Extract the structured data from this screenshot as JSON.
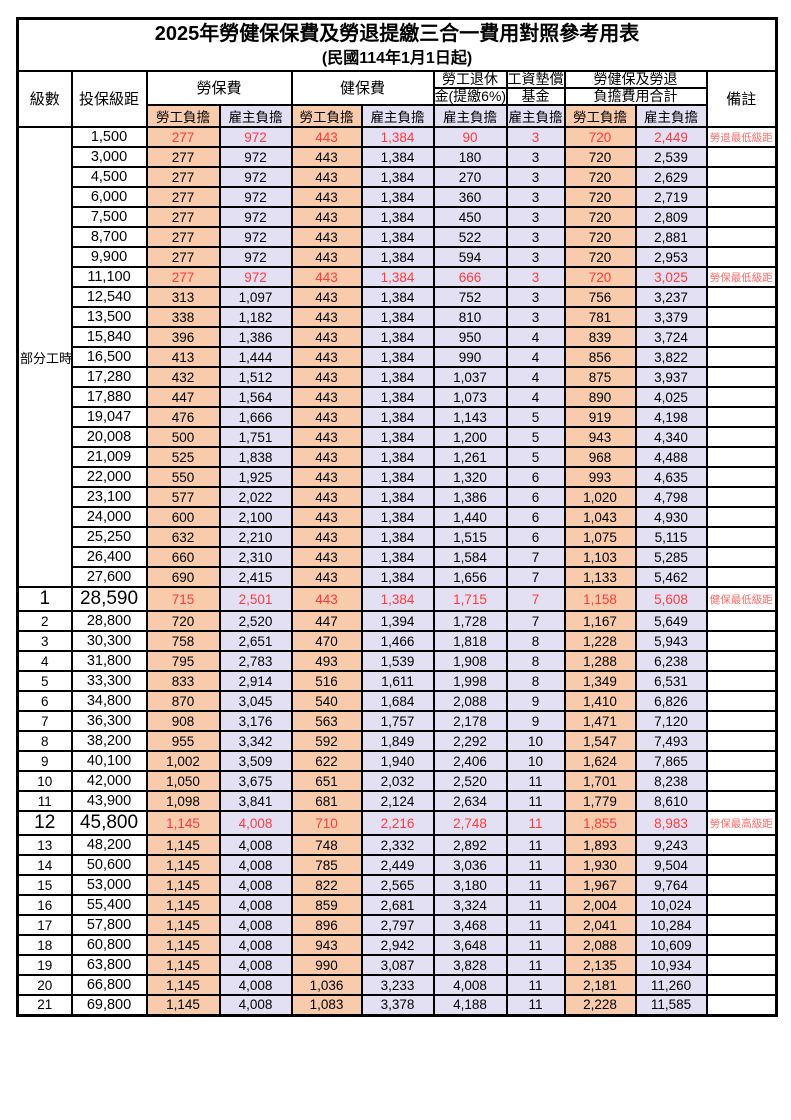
{
  "colors": {
    "employee_col_bg": "#F8CBAD",
    "employer_col_bg": "#E3E0F3",
    "highlight_value_red": "#FF3B3B",
    "note_red": "#FF6B6B",
    "border_black": "#000000",
    "page_bg": "#FFFFFF"
  },
  "table": {
    "title": "2025年勞健保保費及勞退提繳三合一費用對照參考用表",
    "subtitle": "(民國114年1月1日起)",
    "header": {
      "level": "級數",
      "bracket": "投保級距",
      "labor_fee": "勞保費",
      "health_fee": "健保費",
      "pension_line1": "勞工退休",
      "pension_line2": "金(提繳6%)",
      "wage_fund_line1": "工資墊償",
      "wage_fund_line2": "基金",
      "total_line1": "勞健保及勞退",
      "total_line2": "負擔費用合計",
      "note": "備註",
      "employee_share": "勞工負擔",
      "employer_share": "雇主負擔"
    },
    "part_time_label": "部分工時",
    "part_time_rowspan": 23,
    "value_col_classes": [
      "emp",
      "er",
      "emp",
      "er",
      "er",
      "er",
      "emp",
      "er"
    ],
    "rows": [
      {
        "level": "",
        "bracket": "1,500",
        "values": [
          "277",
          "972",
          "443",
          "1,384",
          "90",
          "3",
          "720",
          "2,449"
        ],
        "red": true,
        "big": false,
        "note": "勞退最低級距"
      },
      {
        "level": "",
        "bracket": "3,000",
        "values": [
          "277",
          "972",
          "443",
          "1,384",
          "180",
          "3",
          "720",
          "2,539"
        ],
        "red": false,
        "big": false,
        "note": ""
      },
      {
        "level": "",
        "bracket": "4,500",
        "values": [
          "277",
          "972",
          "443",
          "1,384",
          "270",
          "3",
          "720",
          "2,629"
        ],
        "red": false,
        "big": false,
        "note": ""
      },
      {
        "level": "",
        "bracket": "6,000",
        "values": [
          "277",
          "972",
          "443",
          "1,384",
          "360",
          "3",
          "720",
          "2,719"
        ],
        "red": false,
        "big": false,
        "note": ""
      },
      {
        "level": "",
        "bracket": "7,500",
        "values": [
          "277",
          "972",
          "443",
          "1,384",
          "450",
          "3",
          "720",
          "2,809"
        ],
        "red": false,
        "big": false,
        "note": ""
      },
      {
        "level": "",
        "bracket": "8,700",
        "values": [
          "277",
          "972",
          "443",
          "1,384",
          "522",
          "3",
          "720",
          "2,881"
        ],
        "red": false,
        "big": false,
        "note": ""
      },
      {
        "level": "",
        "bracket": "9,900",
        "values": [
          "277",
          "972",
          "443",
          "1,384",
          "594",
          "3",
          "720",
          "2,953"
        ],
        "red": false,
        "big": false,
        "note": ""
      },
      {
        "level": "",
        "bracket": "11,100",
        "values": [
          "277",
          "972",
          "443",
          "1,384",
          "666",
          "3",
          "720",
          "3,025"
        ],
        "red": true,
        "big": false,
        "note": "勞保最低級距"
      },
      {
        "level": "",
        "bracket": "12,540",
        "values": [
          "313",
          "1,097",
          "443",
          "1,384",
          "752",
          "3",
          "756",
          "3,237"
        ],
        "red": false,
        "big": false,
        "note": ""
      },
      {
        "level": "",
        "bracket": "13,500",
        "values": [
          "338",
          "1,182",
          "443",
          "1,384",
          "810",
          "3",
          "781",
          "3,379"
        ],
        "red": false,
        "big": false,
        "note": ""
      },
      {
        "level": "",
        "bracket": "15,840",
        "values": [
          "396",
          "1,386",
          "443",
          "1,384",
          "950",
          "4",
          "839",
          "3,724"
        ],
        "red": false,
        "big": false,
        "note": ""
      },
      {
        "level": "",
        "bracket": "16,500",
        "values": [
          "413",
          "1,444",
          "443",
          "1,384",
          "990",
          "4",
          "856",
          "3,822"
        ],
        "red": false,
        "big": false,
        "note": ""
      },
      {
        "level": "",
        "bracket": "17,280",
        "values": [
          "432",
          "1,512",
          "443",
          "1,384",
          "1,037",
          "4",
          "875",
          "3,937"
        ],
        "red": false,
        "big": false,
        "note": ""
      },
      {
        "level": "",
        "bracket": "17,880",
        "values": [
          "447",
          "1,564",
          "443",
          "1,384",
          "1,073",
          "4",
          "890",
          "4,025"
        ],
        "red": false,
        "big": false,
        "note": ""
      },
      {
        "level": "",
        "bracket": "19,047",
        "values": [
          "476",
          "1,666",
          "443",
          "1,384",
          "1,143",
          "5",
          "919",
          "4,198"
        ],
        "red": false,
        "big": false,
        "note": ""
      },
      {
        "level": "",
        "bracket": "20,008",
        "values": [
          "500",
          "1,751",
          "443",
          "1,384",
          "1,200",
          "5",
          "943",
          "4,340"
        ],
        "red": false,
        "big": false,
        "note": ""
      },
      {
        "level": "",
        "bracket": "21,009",
        "values": [
          "525",
          "1,838",
          "443",
          "1,384",
          "1,261",
          "5",
          "968",
          "4,488"
        ],
        "red": false,
        "big": false,
        "note": ""
      },
      {
        "level": "",
        "bracket": "22,000",
        "values": [
          "550",
          "1,925",
          "443",
          "1,384",
          "1,320",
          "6",
          "993",
          "4,635"
        ],
        "red": false,
        "big": false,
        "note": ""
      },
      {
        "level": "",
        "bracket": "23,100",
        "values": [
          "577",
          "2,022",
          "443",
          "1,384",
          "1,386",
          "6",
          "1,020",
          "4,798"
        ],
        "red": false,
        "big": false,
        "note": ""
      },
      {
        "level": "",
        "bracket": "24,000",
        "values": [
          "600",
          "2,100",
          "443",
          "1,384",
          "1,440",
          "6",
          "1,043",
          "4,930"
        ],
        "red": false,
        "big": false,
        "note": ""
      },
      {
        "level": "",
        "bracket": "25,250",
        "values": [
          "632",
          "2,210",
          "443",
          "1,384",
          "1,515",
          "6",
          "1,075",
          "5,115"
        ],
        "red": false,
        "big": false,
        "note": ""
      },
      {
        "level": "",
        "bracket": "26,400",
        "values": [
          "660",
          "2,310",
          "443",
          "1,384",
          "1,584",
          "7",
          "1,103",
          "5,285"
        ],
        "red": false,
        "big": false,
        "note": ""
      },
      {
        "level": "",
        "bracket": "27,600",
        "values": [
          "690",
          "2,415",
          "443",
          "1,384",
          "1,656",
          "7",
          "1,133",
          "5,462"
        ],
        "red": false,
        "big": false,
        "note": ""
      },
      {
        "level": "1",
        "bracket": "28,590",
        "values": [
          "715",
          "2,501",
          "443",
          "1,384",
          "1,715",
          "7",
          "1,158",
          "5,608"
        ],
        "red": true,
        "big": true,
        "note": "健保最低級距"
      },
      {
        "level": "2",
        "bracket": "28,800",
        "values": [
          "720",
          "2,520",
          "447",
          "1,394",
          "1,728",
          "7",
          "1,167",
          "5,649"
        ],
        "red": false,
        "big": false,
        "note": ""
      },
      {
        "level": "3",
        "bracket": "30,300",
        "values": [
          "758",
          "2,651",
          "470",
          "1,466",
          "1,818",
          "8",
          "1,228",
          "5,943"
        ],
        "red": false,
        "big": false,
        "note": ""
      },
      {
        "level": "4",
        "bracket": "31,800",
        "values": [
          "795",
          "2,783",
          "493",
          "1,539",
          "1,908",
          "8",
          "1,288",
          "6,238"
        ],
        "red": false,
        "big": false,
        "note": ""
      },
      {
        "level": "5",
        "bracket": "33,300",
        "values": [
          "833",
          "2,914",
          "516",
          "1,611",
          "1,998",
          "8",
          "1,349",
          "6,531"
        ],
        "red": false,
        "big": false,
        "note": ""
      },
      {
        "level": "6",
        "bracket": "34,800",
        "values": [
          "870",
          "3,045",
          "540",
          "1,684",
          "2,088",
          "9",
          "1,410",
          "6,826"
        ],
        "red": false,
        "big": false,
        "note": ""
      },
      {
        "level": "7",
        "bracket": "36,300",
        "values": [
          "908",
          "3,176",
          "563",
          "1,757",
          "2,178",
          "9",
          "1,471",
          "7,120"
        ],
        "red": false,
        "big": false,
        "note": ""
      },
      {
        "level": "8",
        "bracket": "38,200",
        "values": [
          "955",
          "3,342",
          "592",
          "1,849",
          "2,292",
          "10",
          "1,547",
          "7,493"
        ],
        "red": false,
        "big": false,
        "note": ""
      },
      {
        "level": "9",
        "bracket": "40,100",
        "values": [
          "1,002",
          "3,509",
          "622",
          "1,940",
          "2,406",
          "10",
          "1,624",
          "7,865"
        ],
        "red": false,
        "big": false,
        "note": ""
      },
      {
        "level": "10",
        "bracket": "42,000",
        "values": [
          "1,050",
          "3,675",
          "651",
          "2,032",
          "2,520",
          "11",
          "1,701",
          "8,238"
        ],
        "red": false,
        "big": false,
        "note": ""
      },
      {
        "level": "11",
        "bracket": "43,900",
        "values": [
          "1,098",
          "3,841",
          "681",
          "2,124",
          "2,634",
          "11",
          "1,779",
          "8,610"
        ],
        "red": false,
        "big": false,
        "note": ""
      },
      {
        "level": "12",
        "bracket": "45,800",
        "values": [
          "1,145",
          "4,008",
          "710",
          "2,216",
          "2,748",
          "11",
          "1,855",
          "8,983"
        ],
        "red": true,
        "big": true,
        "note": "勞保最高級距"
      },
      {
        "level": "13",
        "bracket": "48,200",
        "values": [
          "1,145",
          "4,008",
          "748",
          "2,332",
          "2,892",
          "11",
          "1,893",
          "9,243"
        ],
        "red": false,
        "big": false,
        "note": ""
      },
      {
        "level": "14",
        "bracket": "50,600",
        "values": [
          "1,145",
          "4,008",
          "785",
          "2,449",
          "3,036",
          "11",
          "1,930",
          "9,504"
        ],
        "red": false,
        "big": false,
        "note": ""
      },
      {
        "level": "15",
        "bracket": "53,000",
        "values": [
          "1,145",
          "4,008",
          "822",
          "2,565",
          "3,180",
          "11",
          "1,967",
          "9,764"
        ],
        "red": false,
        "big": false,
        "note": ""
      },
      {
        "level": "16",
        "bracket": "55,400",
        "values": [
          "1,145",
          "4,008",
          "859",
          "2,681",
          "3,324",
          "11",
          "2,004",
          "10,024"
        ],
        "red": false,
        "big": false,
        "note": ""
      },
      {
        "level": "17",
        "bracket": "57,800",
        "values": [
          "1,145",
          "4,008",
          "896",
          "2,797",
          "3,468",
          "11",
          "2,041",
          "10,284"
        ],
        "red": false,
        "big": false,
        "note": ""
      },
      {
        "level": "18",
        "bracket": "60,800",
        "values": [
          "1,145",
          "4,008",
          "943",
          "2,942",
          "3,648",
          "11",
          "2,088",
          "10,609"
        ],
        "red": false,
        "big": false,
        "note": ""
      },
      {
        "level": "19",
        "bracket": "63,800",
        "values": [
          "1,145",
          "4,008",
          "990",
          "3,087",
          "3,828",
          "11",
          "2,135",
          "10,934"
        ],
        "red": false,
        "big": false,
        "note": ""
      },
      {
        "level": "20",
        "bracket": "66,800",
        "values": [
          "1,145",
          "4,008",
          "1,036",
          "3,233",
          "4,008",
          "11",
          "2,181",
          "11,260"
        ],
        "red": false,
        "big": false,
        "note": ""
      },
      {
        "level": "21",
        "bracket": "69,800",
        "values": [
          "1,145",
          "4,008",
          "1,083",
          "3,378",
          "4,188",
          "11",
          "2,228",
          "11,585"
        ],
        "red": false,
        "big": false,
        "note": ""
      }
    ]
  }
}
